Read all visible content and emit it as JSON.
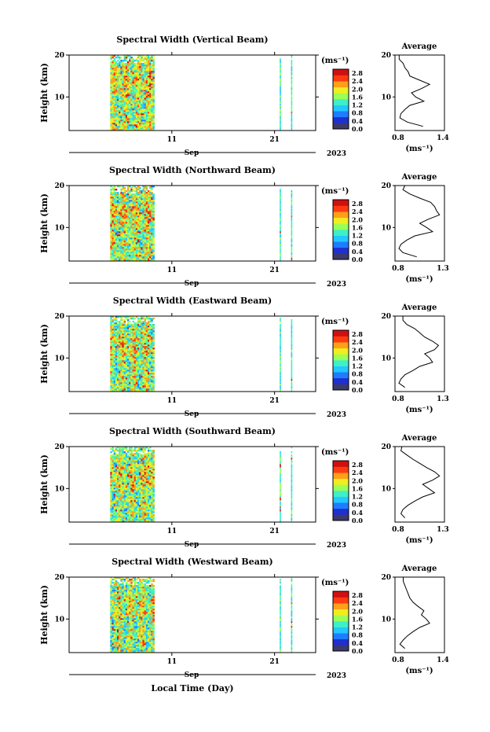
{
  "figure": {
    "xlabel": "Local Time (Day)",
    "colors": {
      "stops": [
        "#3a3a6b",
        "#1f2fd0",
        "#1e7dff",
        "#22c8ff",
        "#3cf0c8",
        "#9bff55",
        "#f0ee20",
        "#ffa018",
        "#ff3a10",
        "#d01010"
      ]
    }
  },
  "chart_data": [
    {
      "type": "heatmap",
      "title": "Spectral Width (Vertical Beam)",
      "ylabel": "Height (km)",
      "ylim": [
        2,
        20
      ],
      "yticks": [
        10,
        20
      ],
      "xticks": [
        {
          "value": 11,
          "label": "11"
        },
        {
          "value": 21,
          "label": "21"
        }
      ],
      "month_label": "Sep",
      "year_label": "2023",
      "colorbar": {
        "unit_label": "(ms⁻¹)",
        "ticks": [
          "0.0",
          "0.4",
          "0.8",
          "1.2",
          "1.6",
          "2.0",
          "2.4",
          "2.8"
        ],
        "range": [
          0,
          3.0
        ]
      },
      "data_spans": [
        [
          5,
          9.3
        ],
        [
          21.5,
          21.6
        ],
        [
          22.6,
          22.7
        ]
      ],
      "profile": {
        "title": "Average",
        "xlim": [
          0.8,
          1.4
        ],
        "xticks": [
          "0.8",
          "1.4"
        ],
        "xlabel": "(ms⁻¹)",
        "heights": [
          3,
          4,
          5,
          6,
          7,
          8,
          9,
          10,
          11,
          12,
          13,
          14,
          15,
          16,
          17,
          18,
          19,
          20
        ],
        "values": [
          1.14,
          0.95,
          0.86,
          0.87,
          0.92,
          0.98,
          1.15,
          1.05,
          1.0,
          1.12,
          1.22,
          1.1,
          0.98,
          0.96,
          0.92,
          0.9,
          0.85,
          0.85
        ]
      }
    },
    {
      "type": "heatmap",
      "title": "Spectral Width (Northward Beam)",
      "ylabel": "Height (km)",
      "ylim": [
        2,
        20
      ],
      "yticks": [
        10,
        20
      ],
      "xticks": [
        {
          "value": 11,
          "label": "11"
        },
        {
          "value": 21,
          "label": "21"
        }
      ],
      "month_label": "Sep",
      "year_label": "2023",
      "colorbar": {
        "unit_label": "(ms⁻¹)",
        "ticks": [
          "0.0",
          "0.4",
          "0.8",
          "1.2",
          "1.6",
          "2.0",
          "2.4",
          "2.8"
        ],
        "range": [
          0,
          3.0
        ]
      },
      "data_spans": [
        [
          5,
          9.3
        ],
        [
          21.5,
          21.6
        ],
        [
          22.6,
          22.7
        ]
      ],
      "profile": {
        "title": "Average",
        "xlim": [
          0.8,
          1.3
        ],
        "xticks": [
          "0.8",
          "1.3"
        ],
        "xlabel": "(ms⁻¹)",
        "heights": [
          3,
          4,
          5,
          6,
          7,
          8,
          9,
          10,
          11,
          12,
          13,
          14,
          15,
          16,
          17,
          18,
          19,
          20
        ],
        "values": [
          1.02,
          0.88,
          0.84,
          0.86,
          0.92,
          1.0,
          1.18,
          1.12,
          1.05,
          1.14,
          1.25,
          1.22,
          1.2,
          1.16,
          1.05,
          0.95,
          0.88,
          0.9
        ]
      }
    },
    {
      "type": "heatmap",
      "title": "Spectral Width (Eastward Beam)",
      "ylabel": "Height (km)",
      "ylim": [
        2,
        20
      ],
      "yticks": [
        10,
        20
      ],
      "xticks": [
        {
          "value": 11,
          "label": "11"
        },
        {
          "value": 21,
          "label": "21"
        }
      ],
      "month_label": "Sep",
      "year_label": "2023",
      "colorbar": {
        "unit_label": "(ms⁻¹)",
        "ticks": [
          "0.0",
          "0.4",
          "0.8",
          "1.2",
          "1.6",
          "2.0",
          "2.4",
          "2.8"
        ],
        "range": [
          0,
          3.0
        ]
      },
      "data_spans": [
        [
          5,
          9.3
        ],
        [
          21.5,
          21.6
        ],
        [
          22.6,
          22.7
        ]
      ],
      "profile": {
        "title": "Average",
        "xlim": [
          0.8,
          1.3
        ],
        "xticks": [
          "0.8",
          "1.3"
        ],
        "xlabel": "(ms⁻¹)",
        "heights": [
          3,
          4,
          5,
          6,
          7,
          8,
          9,
          10,
          11,
          12,
          13,
          14,
          15,
          16,
          17,
          18,
          19,
          20
        ],
        "values": [
          0.9,
          0.84,
          0.86,
          0.9,
          0.98,
          1.05,
          1.18,
          1.15,
          1.1,
          1.2,
          1.24,
          1.18,
          1.1,
          1.05,
          1.0,
          0.92,
          0.88,
          0.88
        ]
      }
    },
    {
      "type": "heatmap",
      "title": "Spectral Width (Southward Beam)",
      "ylabel": "Height (km)",
      "ylim": [
        2,
        20
      ],
      "yticks": [
        10,
        20
      ],
      "xticks": [
        {
          "value": 11,
          "label": "11"
        },
        {
          "value": 21,
          "label": "21"
        }
      ],
      "month_label": "Sep",
      "year_label": "2023",
      "colorbar": {
        "unit_label": "(ms⁻¹)",
        "ticks": [
          "0.0",
          "0.4",
          "0.8",
          "1.2",
          "1.6",
          "2.0",
          "2.4",
          "2.8"
        ],
        "range": [
          0,
          3.0
        ]
      },
      "data_spans": [
        [
          5,
          9.3
        ],
        [
          21.5,
          21.6
        ],
        [
          22.6,
          22.7
        ]
      ],
      "profile": {
        "title": "Average",
        "xlim": [
          0.8,
          1.3
        ],
        "xticks": [
          "0.8",
          "1.3"
        ],
        "xlabel": "(ms⁻¹)",
        "heights": [
          3,
          4,
          5,
          6,
          7,
          8,
          9,
          10,
          11,
          12,
          13,
          14,
          15,
          16,
          17,
          18,
          19,
          20
        ],
        "values": [
          0.9,
          0.86,
          0.88,
          0.93,
          1.0,
          1.08,
          1.2,
          1.14,
          1.08,
          1.18,
          1.25,
          1.2,
          1.12,
          1.05,
          0.98,
          0.92,
          0.86,
          0.87
        ]
      }
    },
    {
      "type": "heatmap",
      "title": "Spectral Width (Westward Beam)",
      "ylabel": "Height (km)",
      "ylim": [
        2,
        20
      ],
      "yticks": [
        10,
        20
      ],
      "xticks": [
        {
          "value": 11,
          "label": "11"
        },
        {
          "value": 21,
          "label": "21"
        }
      ],
      "month_label": "Sep",
      "year_label": "2023",
      "colorbar": {
        "unit_label": "(ms⁻¹)",
        "ticks": [
          "0.0",
          "0.4",
          "0.8",
          "1.2",
          "1.6",
          "2.0",
          "2.4",
          "2.8"
        ],
        "range": [
          0,
          3.0
        ]
      },
      "data_spans": [
        [
          5,
          9.3
        ],
        [
          21.5,
          21.6
        ],
        [
          22.6,
          22.7
        ]
      ],
      "profile": {
        "title": "Average",
        "xlim": [
          0.8,
          1.4
        ],
        "xticks": [
          "0.8",
          "1.4"
        ],
        "xlabel": "(ms⁻¹)",
        "heights": [
          3,
          4,
          5,
          6,
          7,
          8,
          9,
          10,
          11,
          12,
          13,
          14,
          15,
          16,
          17,
          18,
          19,
          20
        ],
        "values": [
          0.92,
          0.86,
          0.9,
          0.95,
          1.02,
          1.1,
          1.22,
          1.18,
          1.12,
          1.15,
          1.08,
          1.02,
          0.98,
          0.96,
          0.94,
          0.92,
          0.9,
          0.9
        ]
      }
    }
  ]
}
